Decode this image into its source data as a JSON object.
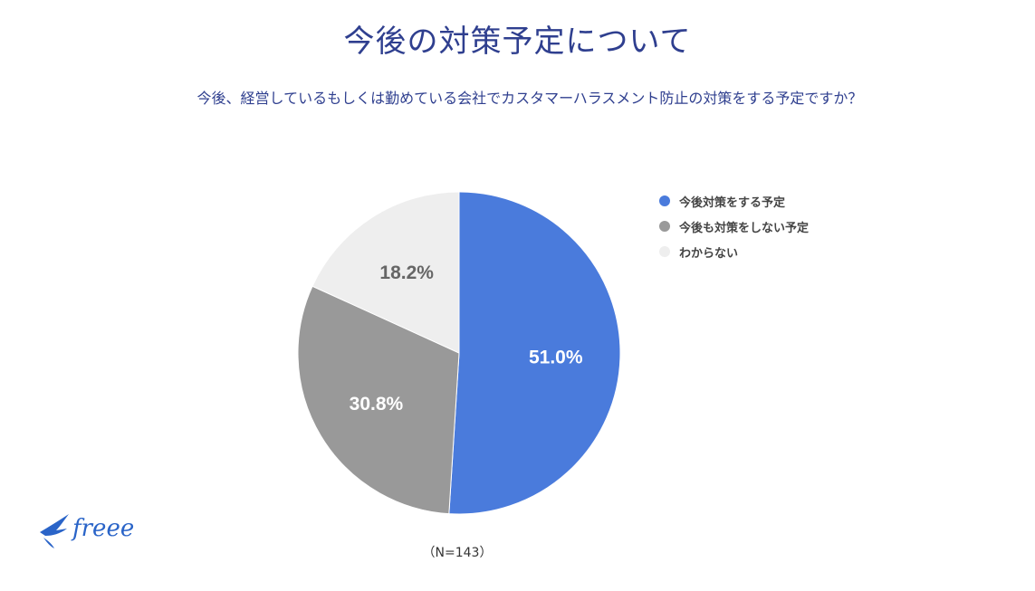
{
  "header": {
    "title": "今後の対策予定について",
    "subtitle": "今後、経営しているもしくは勤めている会社でカスタマーハラスメント防止の対策をする予定ですか？"
  },
  "chart_data": {
    "type": "pie",
    "title": "今後の対策予定について",
    "subtitle": "今後、経営しているもしくは勤めている会社でカスタマーハラスメント防止の対策をする予定ですか？",
    "categories": [
      "今後対策をする予定",
      "今後も対策をしない予定",
      "わからない"
    ],
    "values": [
      51.0,
      30.8,
      18.2
    ],
    "labels": [
      "51.0%",
      "30.8%",
      "18.2%"
    ],
    "colors": [
      "#4a7bdc",
      "#999999",
      "#eeeeee"
    ],
    "label_colors": [
      "#ffffff",
      "#ffffff",
      "#666666"
    ],
    "legend_position": "right",
    "note": "（N=143）"
  },
  "footer": {
    "note": "（N=143）",
    "logo_text": "freee",
    "logo_color": "#2a64c8"
  }
}
